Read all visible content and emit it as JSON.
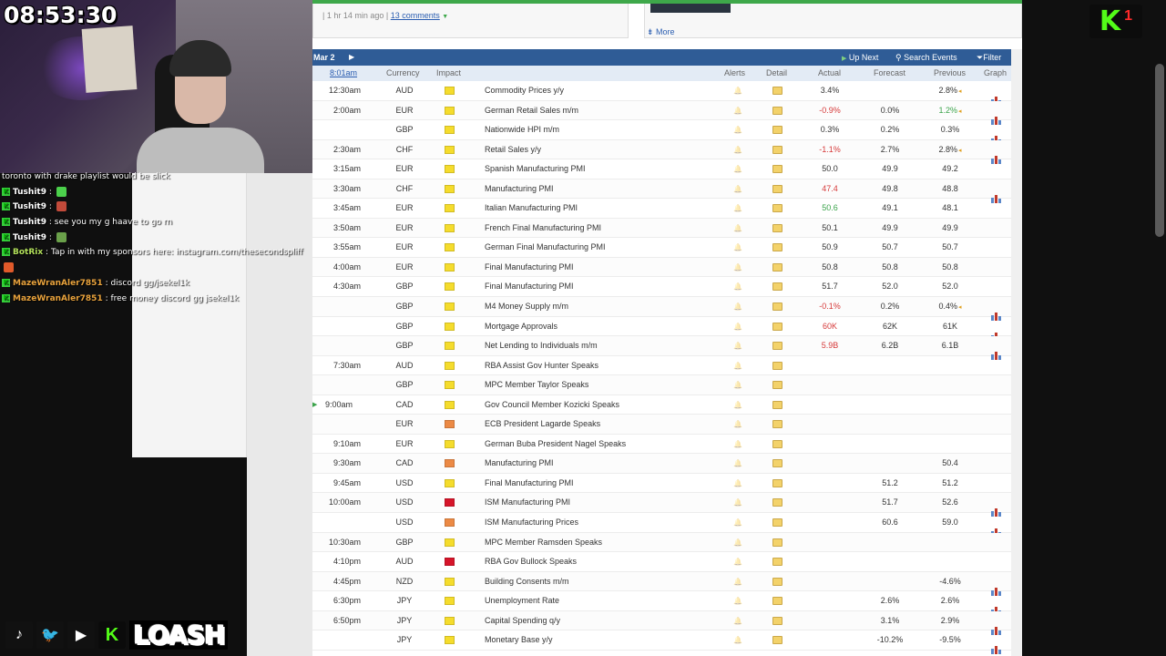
{
  "stream": {
    "clock": "08:53:30",
    "brand": "LOASH",
    "kick_badge_number": "1",
    "chat": [
      {
        "user": "",
        "message": "toronto with drake playlist would be slick",
        "color": "white",
        "badge": false
      },
      {
        "user": "Tushit9",
        "message": "",
        "color": "white",
        "badge": true,
        "emote": "#4bd04b"
      },
      {
        "user": "Tushit9",
        "message": "",
        "color": "white",
        "badge": true,
        "emote": "#c24a3a"
      },
      {
        "user": "Tushit9",
        "message": "see you my g haave to go rn",
        "color": "white",
        "badge": true
      },
      {
        "user": "Tushit9",
        "message": "",
        "color": "white",
        "badge": true,
        "emote": "#6aa04a"
      },
      {
        "user": "BotRix",
        "message": "Tap in with my sponsors here: instagram.com/thesecondspliff",
        "color": "green",
        "badge": true
      },
      {
        "user": "",
        "message": "",
        "color": "white",
        "badge": false,
        "emote": "#e05a2a"
      },
      {
        "user": "MazeWranAler7851",
        "message": "discord gg/jsekel1k",
        "color": "orange",
        "badge": true
      },
      {
        "user": "MazeWranAler7851",
        "message": "free money discord gg jsekel1k",
        "color": "orange",
        "badge": true
      }
    ],
    "socials": [
      "tiktok-icon",
      "twitter-icon",
      "youtube-icon",
      "kick-icon"
    ]
  },
  "news": {
    "meta_time": "1 hr 14 min ago",
    "comments": "13 comments",
    "more": "More"
  },
  "toolbar": {
    "date": "Mar 2",
    "up_next": "Up Next",
    "search_events": "Search Events",
    "filter": "Filter"
  },
  "columns": {
    "time": "8:01am",
    "currency": "Currency",
    "impact": "Impact",
    "alerts": "Alerts",
    "detail": "Detail",
    "actual": "Actual",
    "forecast": "Forecast",
    "previous": "Previous",
    "graph": "Graph"
  },
  "events": [
    {
      "time": "12:30am",
      "currency": "AUD",
      "impact": "low",
      "event": "Commodity Prices y/y",
      "actual": "3.4%",
      "actual_color": "",
      "forecast": "",
      "previous": "2.8%",
      "revised": true,
      "graph": true
    },
    {
      "time": "2:00am",
      "currency": "EUR",
      "impact": "low",
      "event": "German Retail Sales m/m",
      "actual": "-0.9%",
      "actual_color": "red",
      "forecast": "0.0%",
      "previous": "1.2%",
      "previous_color": "green",
      "revised": true,
      "graph": true
    },
    {
      "time": "",
      "currency": "GBP",
      "impact": "low",
      "event": "Nationwide HPI m/m",
      "actual": "0.3%",
      "actual_color": "",
      "forecast": "0.2%",
      "previous": "0.3%",
      "revised": false,
      "graph": true
    },
    {
      "time": "2:30am",
      "currency": "CHF",
      "impact": "low",
      "event": "Retail Sales y/y",
      "actual": "-1.1%",
      "actual_color": "red",
      "forecast": "2.7%",
      "previous": "2.8%",
      "revised": true,
      "graph": true
    },
    {
      "time": "3:15am",
      "currency": "EUR",
      "impact": "low",
      "event": "Spanish Manufacturing PMI",
      "actual": "50.0",
      "actual_color": "",
      "forecast": "49.9",
      "previous": "49.2",
      "revised": false,
      "graph": false
    },
    {
      "time": "3:30am",
      "currency": "CHF",
      "impact": "low",
      "event": "Manufacturing PMI",
      "actual": "47.4",
      "actual_color": "red",
      "forecast": "49.8",
      "previous": "48.8",
      "revised": false,
      "graph": true
    },
    {
      "time": "3:45am",
      "currency": "EUR",
      "impact": "low",
      "event": "Italian Manufacturing PMI",
      "actual": "50.6",
      "actual_color": "green",
      "forecast": "49.1",
      "previous": "48.1",
      "revised": false,
      "graph": false
    },
    {
      "time": "3:50am",
      "currency": "EUR",
      "impact": "low",
      "event": "French Final Manufacturing PMI",
      "actual": "50.1",
      "actual_color": "",
      "forecast": "49.9",
      "previous": "49.9",
      "revised": false,
      "graph": false
    },
    {
      "time": "3:55am",
      "currency": "EUR",
      "impact": "low",
      "event": "German Final Manufacturing PMI",
      "actual": "50.9",
      "actual_color": "",
      "forecast": "50.7",
      "previous": "50.7",
      "revised": false,
      "graph": false
    },
    {
      "time": "4:00am",
      "currency": "EUR",
      "impact": "low",
      "event": "Final Manufacturing PMI",
      "actual": "50.8",
      "actual_color": "",
      "forecast": "50.8",
      "previous": "50.8",
      "revised": false,
      "graph": false
    },
    {
      "time": "4:30am",
      "currency": "GBP",
      "impact": "low",
      "event": "Final Manufacturing PMI",
      "actual": "51.7",
      "actual_color": "",
      "forecast": "52.0",
      "previous": "52.0",
      "revised": false,
      "graph": false
    },
    {
      "time": "",
      "currency": "GBP",
      "impact": "low",
      "event": "M4 Money Supply m/m",
      "actual": "-0.1%",
      "actual_color": "red",
      "forecast": "0.2%",
      "previous": "0.4%",
      "revised": true,
      "graph": true
    },
    {
      "time": "",
      "currency": "GBP",
      "impact": "low",
      "event": "Mortgage Approvals",
      "actual": "60K",
      "actual_color": "red",
      "forecast": "62K",
      "previous": "61K",
      "revised": false,
      "graph": true
    },
    {
      "time": "",
      "currency": "GBP",
      "impact": "low",
      "event": "Net Lending to Individuals m/m",
      "actual": "5.9B",
      "actual_color": "red",
      "forecast": "6.2B",
      "previous": "6.1B",
      "revised": false,
      "graph": true
    },
    {
      "time": "7:30am",
      "currency": "AUD",
      "impact": "low",
      "event": "RBA Assist Gov Hunter Speaks",
      "actual": "",
      "forecast": "",
      "previous": "",
      "revised": false,
      "graph": false
    },
    {
      "time": "",
      "currency": "GBP",
      "impact": "low",
      "event": "MPC Member Taylor Speaks",
      "actual": "",
      "forecast": "",
      "previous": "",
      "revised": false,
      "graph": false
    },
    {
      "time": "9:00am",
      "currency": "CAD",
      "impact": "low",
      "event": "Gov Council Member Kozicki Speaks",
      "actual": "",
      "forecast": "",
      "previous": "",
      "revised": false,
      "graph": false,
      "next": true
    },
    {
      "time": "",
      "currency": "EUR",
      "impact": "med",
      "event": "ECB President Lagarde Speaks",
      "actual": "",
      "forecast": "",
      "previous": "",
      "revised": false,
      "graph": false
    },
    {
      "time": "9:10am",
      "currency": "EUR",
      "impact": "low",
      "event": "German Buba President Nagel Speaks",
      "actual": "",
      "forecast": "",
      "previous": "",
      "revised": false,
      "graph": false
    },
    {
      "time": "9:30am",
      "currency": "CAD",
      "impact": "med",
      "event": "Manufacturing PMI",
      "actual": "",
      "forecast": "",
      "previous": "50.4",
      "revised": false,
      "graph": false
    },
    {
      "time": "9:45am",
      "currency": "USD",
      "impact": "low",
      "event": "Final Manufacturing PMI",
      "actual": "",
      "forecast": "51.2",
      "previous": "51.2",
      "revised": false,
      "graph": false
    },
    {
      "time": "10:00am",
      "currency": "USD",
      "impact": "high",
      "event": "ISM Manufacturing PMI",
      "actual": "",
      "forecast": "51.7",
      "previous": "52.6",
      "revised": false,
      "graph": true
    },
    {
      "time": "",
      "currency": "USD",
      "impact": "med",
      "event": "ISM Manufacturing Prices",
      "actual": "",
      "forecast": "60.6",
      "previous": "59.0",
      "revised": false,
      "graph": true
    },
    {
      "time": "10:30am",
      "currency": "GBP",
      "impact": "low",
      "event": "MPC Member Ramsden Speaks",
      "actual": "",
      "forecast": "",
      "previous": "",
      "revised": false,
      "graph": false
    },
    {
      "time": "4:10pm",
      "currency": "AUD",
      "impact": "high",
      "event": "RBA Gov Bullock Speaks",
      "actual": "",
      "forecast": "",
      "previous": "",
      "revised": false,
      "graph": false
    },
    {
      "time": "4:45pm",
      "currency": "NZD",
      "impact": "low",
      "event": "Building Consents m/m",
      "actual": "",
      "forecast": "",
      "previous": "-4.6%",
      "revised": false,
      "graph": true
    },
    {
      "time": "6:30pm",
      "currency": "JPY",
      "impact": "low",
      "event": "Unemployment Rate",
      "actual": "",
      "forecast": "2.6%",
      "previous": "2.6%",
      "revised": false,
      "graph": true
    },
    {
      "time": "6:50pm",
      "currency": "JPY",
      "impact": "low",
      "event": "Capital Spending q/y",
      "actual": "",
      "forecast": "3.1%",
      "previous": "2.9%",
      "revised": false,
      "graph": true
    },
    {
      "time": "",
      "currency": "JPY",
      "impact": "low",
      "event": "Monetary Base y/y",
      "actual": "",
      "forecast": "-10.2%",
      "previous": "-9.5%",
      "revised": false,
      "graph": true
    }
  ],
  "colors": {
    "toolbar": "#2f5c96",
    "impact_low": "#f5dc2c",
    "impact_med": "#ec8a45",
    "impact_high": "#d6152a",
    "kick_green": "#53fc18"
  }
}
